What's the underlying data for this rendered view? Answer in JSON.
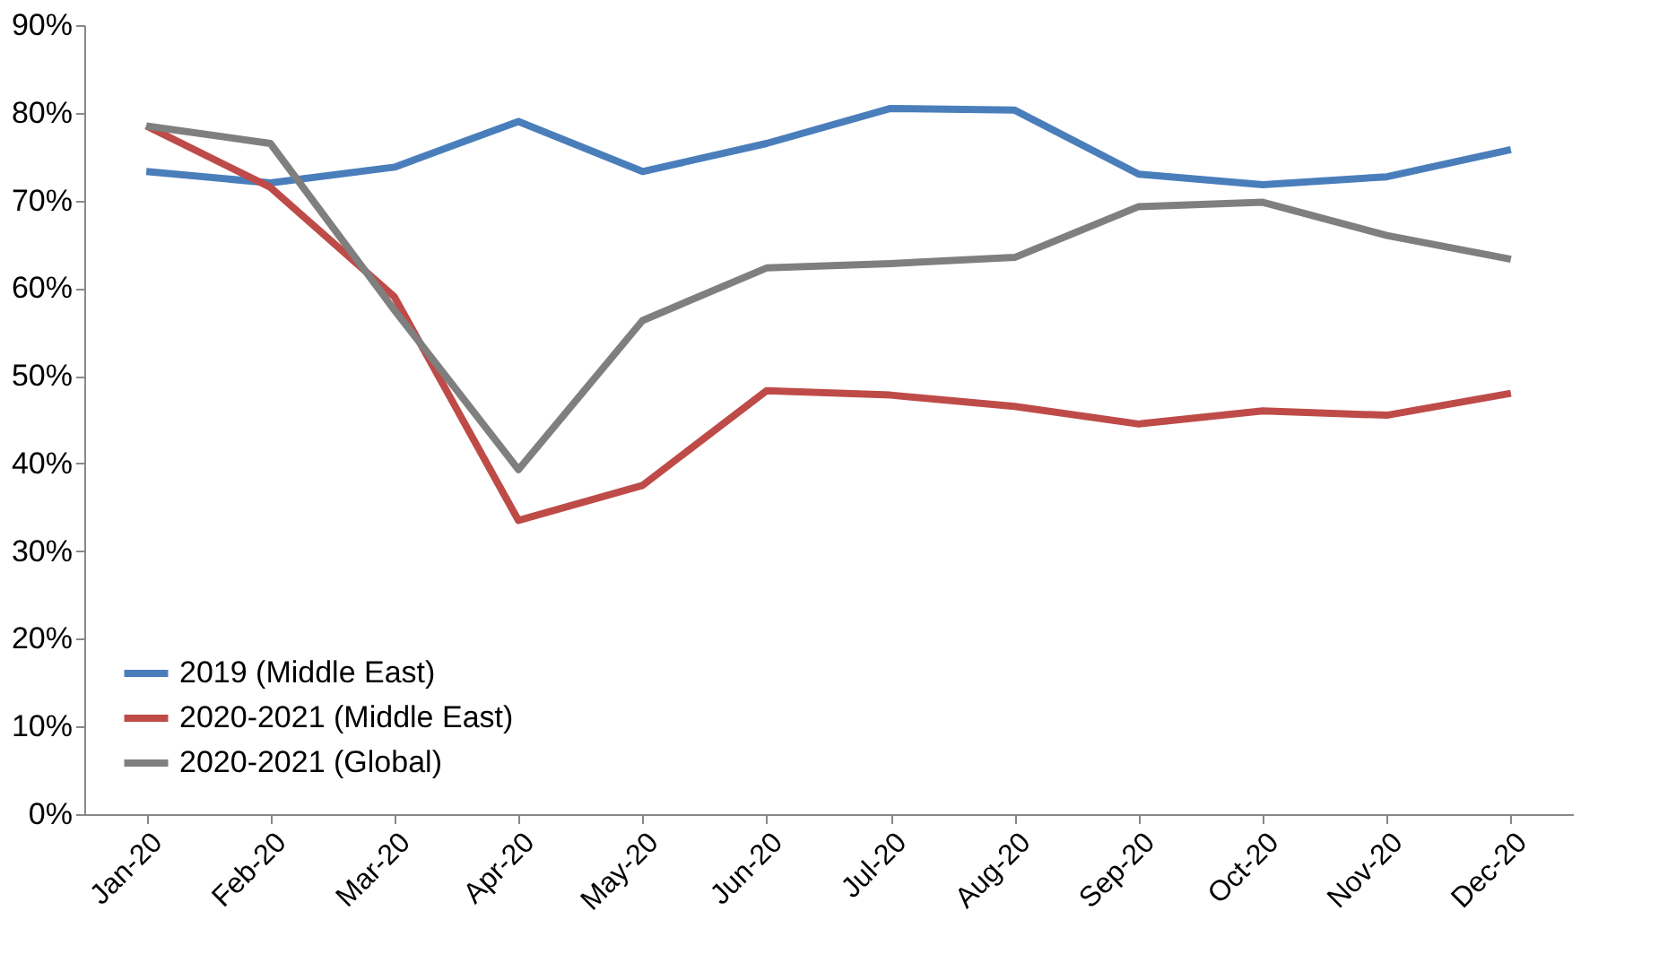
{
  "chart_data": {
    "type": "line",
    "categories": [
      "Jan-20",
      "Feb-20",
      "Mar-20",
      "Apr-20",
      "May-20",
      "Jun-20",
      "Jul-20",
      "Aug-20",
      "Sep-20",
      "Oct-20",
      "Nov-20",
      "Dec-20"
    ],
    "series": [
      {
        "name": "2019 (Middle East)",
        "color": "#4a7ebb",
        "values": [
          73.3,
          72,
          73.8,
          79,
          73.3,
          76.5,
          80.5,
          80.3,
          73,
          71.8,
          72.7,
          75.8
        ]
      },
      {
        "name": "2020-2021 (Middle East)",
        "color": "#be4b48",
        "values": [
          78.5,
          71.5,
          59,
          33.5,
          37.5,
          48.3,
          47.8,
          46.5,
          44.5,
          46,
          45.5,
          48
        ]
      },
      {
        "name": "2020-2021 (Global)",
        "color": "#7f7f7f",
        "values": [
          78.5,
          76.5,
          57.5,
          39.3,
          56.3,
          62.3,
          62.8,
          63.5,
          69.3,
          69.8,
          66,
          63.3
        ]
      }
    ],
    "ylim": [
      0,
      90
    ],
    "yticks": [
      {
        "value": 0,
        "label": "0%"
      },
      {
        "value": 10,
        "label": "10%"
      },
      {
        "value": 20,
        "label": "20%"
      },
      {
        "value": 30,
        "label": "30%"
      },
      {
        "value": 40,
        "label": "40%"
      },
      {
        "value": 50,
        "label": "50%"
      },
      {
        "value": 60,
        "label": "60%"
      },
      {
        "value": 70,
        "label": "70%"
      },
      {
        "value": 80,
        "label": "80%"
      },
      {
        "value": 90,
        "label": "90%"
      }
    ],
    "grid": false,
    "legend": "bottom left",
    "marker": "none",
    "line_style": "solid"
  }
}
